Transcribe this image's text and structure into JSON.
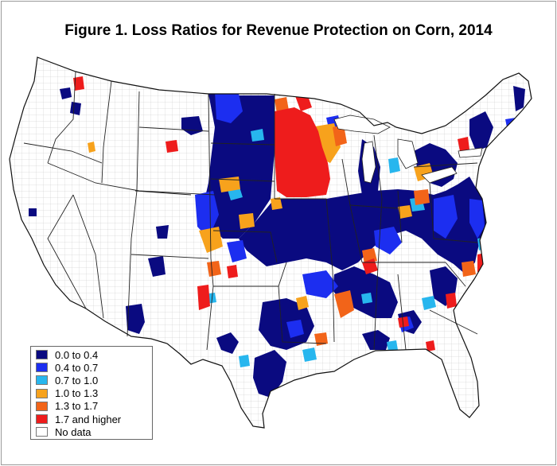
{
  "title": "Figure 1. Loss Ratios for Revenue Protection on Corn, 2014",
  "legend": {
    "items": [
      {
        "label": "0.0 to 0.4",
        "color": "#0a0a80"
      },
      {
        "label": "0.4 to 0.7",
        "color": "#1c2ef0"
      },
      {
        "label": "0.7 to 1.0",
        "color": "#27b6ee"
      },
      {
        "label": "1.0 to 1.3",
        "color": "#f7a21c"
      },
      {
        "label": "1.3 to 1.7",
        "color": "#f26419"
      },
      {
        "label": "1.7 and higher",
        "color": "#ee1c1c"
      },
      {
        "label": "No data",
        "color": "#ffffff"
      }
    ]
  },
  "map": {
    "region": "Contiguous United States",
    "unit": "county",
    "projection": "Albers equal-area",
    "boundaries": [
      "state",
      "county"
    ]
  }
}
